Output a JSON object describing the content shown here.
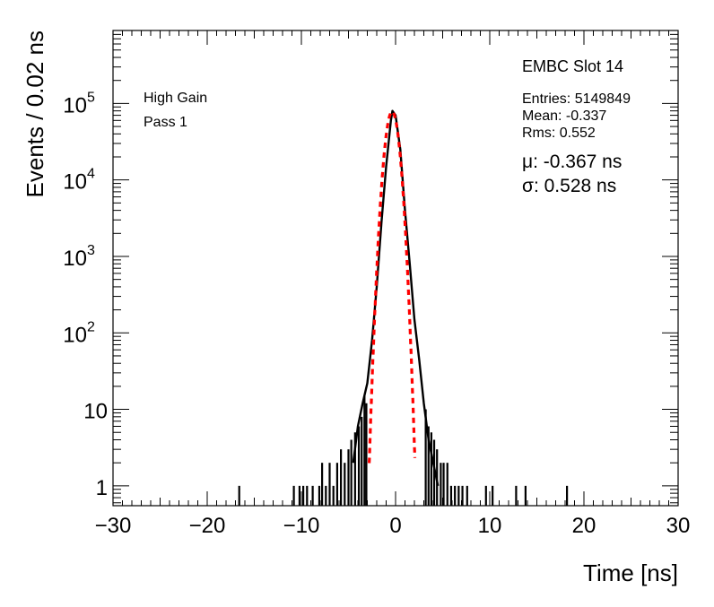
{
  "chart_data": {
    "type": "histogram",
    "xlabel": "Time [ns]",
    "ylabel": "Events / 0.02 ns",
    "xlim": [
      -30,
      30
    ],
    "ylim": [
      0.55,
      900000
    ],
    "yscale": "log",
    "x_ticks": [
      -30,
      -20,
      -10,
      0,
      10,
      20,
      30
    ],
    "x_tick_labels": [
      "−30",
      "−20",
      "−10",
      "0",
      "10",
      "20",
      "30"
    ],
    "y_tick_labels": [
      {
        "value": 1,
        "base": "1",
        "exp": ""
      },
      {
        "value": 10,
        "base": "10",
        "exp": ""
      },
      {
        "value": 100,
        "base": "10",
        "exp": "2"
      },
      {
        "value": 1000,
        "base": "10",
        "exp": "3"
      },
      {
        "value": 10000,
        "base": "10",
        "exp": "4"
      },
      {
        "value": 100000,
        "base": "10",
        "exp": "5"
      }
    ],
    "histogram": {
      "line_color": "#000000",
      "peak_x": -0.337,
      "peak_value": 80000,
      "core_points": [
        [
          -4.5,
          2
        ],
        [
          -4.0,
          6
        ],
        [
          -3.5,
          12
        ],
        [
          -3.0,
          22
        ],
        [
          -2.5,
          80
        ],
        [
          -2.0,
          400
        ],
        [
          -1.5,
          2800
        ],
        [
          -1.0,
          15000
        ],
        [
          -0.5,
          60000
        ],
        [
          -0.337,
          80000
        ],
        [
          0.0,
          70000
        ],
        [
          0.5,
          25000
        ],
        [
          1.0,
          4000
        ],
        [
          1.5,
          800
        ],
        [
          2.0,
          150
        ],
        [
          2.5,
          45
        ],
        [
          3.0,
          12
        ],
        [
          3.5,
          4
        ],
        [
          4.0,
          2
        ],
        [
          4.5,
          1
        ]
      ],
      "tail_spikes": [
        [
          -16.6,
          1
        ],
        [
          -10.8,
          1
        ],
        [
          -10.2,
          1
        ],
        [
          -9.8,
          1
        ],
        [
          -9.4,
          1
        ],
        [
          -8.8,
          1
        ],
        [
          -8.1,
          1
        ],
        [
          -7.8,
          2
        ],
        [
          -7.4,
          1
        ],
        [
          -7.0,
          2
        ],
        [
          -6.6,
          1
        ],
        [
          -6.2,
          2
        ],
        [
          -5.8,
          3
        ],
        [
          -5.4,
          2
        ],
        [
          -5.0,
          3
        ],
        [
          -4.7,
          4
        ],
        [
          -4.3,
          5
        ],
        [
          -3.9,
          6
        ],
        [
          -3.6,
          8
        ],
        [
          -3.3,
          15
        ],
        [
          -3.1,
          12
        ],
        [
          3.2,
          10
        ],
        [
          3.5,
          6
        ],
        [
          3.8,
          5
        ],
        [
          4.1,
          4
        ],
        [
          4.4,
          3
        ],
        [
          4.8,
          2
        ],
        [
          5.1,
          2
        ],
        [
          5.5,
          2
        ],
        [
          5.9,
          1
        ],
        [
          6.3,
          1
        ],
        [
          6.7,
          1
        ],
        [
          7.1,
          1
        ],
        [
          7.6,
          1
        ],
        [
          9.6,
          1
        ],
        [
          10.3,
          1
        ],
        [
          12.8,
          1
        ],
        [
          13.8,
          1
        ],
        [
          18.2,
          1
        ]
      ]
    },
    "fit": {
      "type": "gaussian",
      "color": "#ff0000",
      "mu": -0.367,
      "sigma": 0.528,
      "amplitude": 78000
    },
    "legend_left": [
      "High Gain",
      "Pass 1"
    ],
    "stats_box": {
      "title": "EMBC Slot 14",
      "entries": "Entries: 5149849",
      "mean": "Mean: -0.337",
      "rms": "Rms: 0.552",
      "mu_text": "μ: -0.367 ns",
      "sigma_text": "σ: 0.528 ns"
    }
  }
}
